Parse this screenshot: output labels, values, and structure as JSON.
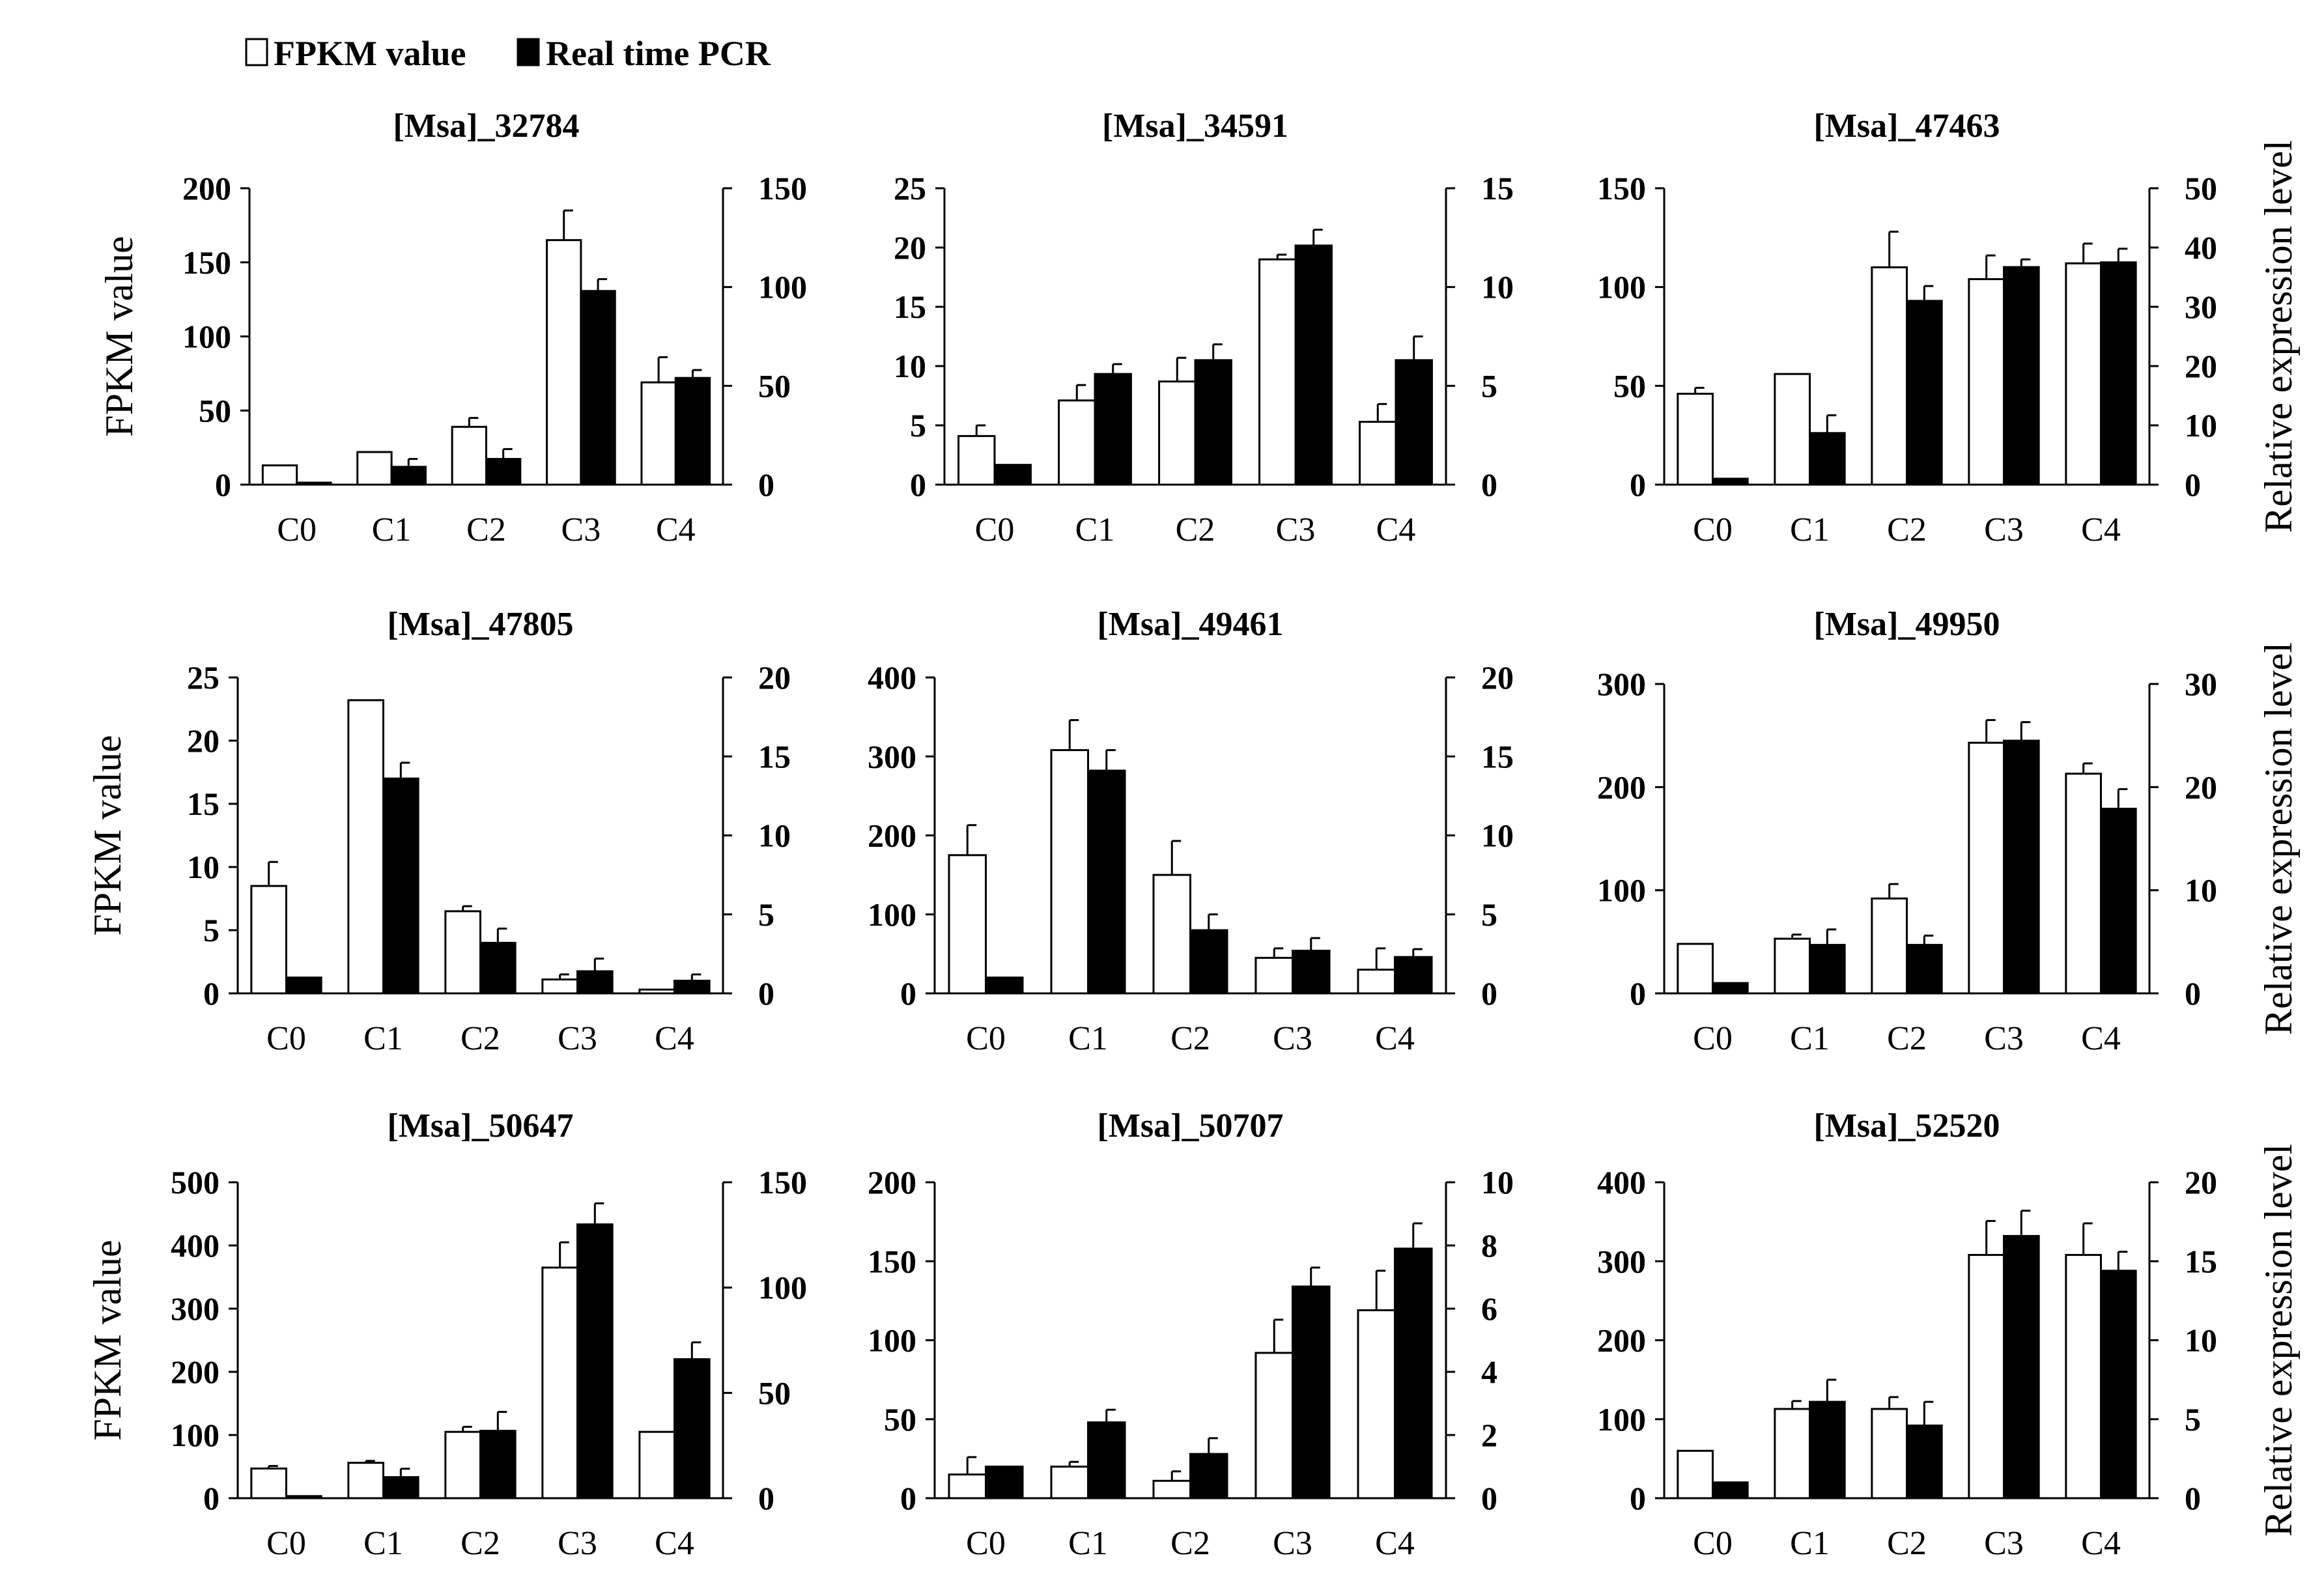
{
  "legend": {
    "fpkm_label": "FPKM value",
    "pcr_label": "Real time PCR"
  },
  "chart_data": [
    {
      "type": "bar",
      "title": "[Msa]_32784",
      "categories": [
        "C0",
        "C1",
        "C2",
        "C3",
        "C4"
      ],
      "ylabel_left": "FPKM value",
      "ylabel_right": "",
      "ylim_left": [
        0,
        200
      ],
      "yticks_left": [
        0,
        50,
        100,
        150,
        200
      ],
      "ylim_right": [
        0,
        150
      ],
      "yticks_right": [
        0,
        50,
        100,
        150
      ],
      "series": [
        {
          "name": "FPKM value",
          "axis": "left",
          "values": [
            13,
            22,
            39,
            165,
            69
          ],
          "errors": [
            0,
            0,
            6,
            20,
            17
          ]
        },
        {
          "name": "Real time PCR",
          "axis": "right",
          "values": [
            1,
            9,
            13,
            98,
            54
          ],
          "errors": [
            0,
            4,
            5,
            6,
            4
          ]
        }
      ]
    },
    {
      "type": "bar",
      "title": "[Msa]_34591",
      "categories": [
        "C0",
        "C1",
        "C2",
        "C3",
        "C4"
      ],
      "ylabel_left": "",
      "ylabel_right": "",
      "ylim_left": [
        0,
        25
      ],
      "yticks_left": [
        0,
        5,
        10,
        15,
        20,
        25
      ],
      "ylim_right": [
        0,
        15
      ],
      "yticks_right": [
        0,
        5,
        10,
        15
      ],
      "series": [
        {
          "name": "FPKM value",
          "axis": "left",
          "values": [
            4.1,
            7.1,
            8.7,
            19,
            5.3
          ],
          "errors": [
            0.9,
            1.3,
            2,
            0.4,
            1.5
          ]
        },
        {
          "name": "Real time PCR",
          "axis": "right",
          "values": [
            1,
            5.6,
            6.3,
            12.1,
            6.3
          ],
          "errors": [
            0,
            0.5,
            0.8,
            0.8,
            1.2
          ]
        }
      ]
    },
    {
      "type": "bar",
      "title": "[Msa]_47463",
      "categories": [
        "C0",
        "C1",
        "C2",
        "C3",
        "C4"
      ],
      "ylabel_left": "",
      "ylabel_right": "Relative expression level",
      "ylim_left": [
        0,
        150
      ],
      "yticks_left": [
        0,
        50,
        100,
        150
      ],
      "ylim_right": [
        0,
        50
      ],
      "yticks_right": [
        0,
        10,
        20,
        30,
        40,
        50
      ],
      "series": [
        {
          "name": "FPKM value",
          "axis": "left",
          "values": [
            46,
            56,
            110,
            104,
            112
          ],
          "errors": [
            3,
            0,
            18,
            12,
            10
          ]
        },
        {
          "name": "Real time PCR",
          "axis": "right",
          "values": [
            1,
            8.7,
            31,
            36.7,
            37.5
          ],
          "errors": [
            0,
            3,
            2.5,
            1.3,
            2.3
          ]
        }
      ]
    },
    {
      "type": "bar",
      "title": "[Msa]_47805",
      "categories": [
        "C0",
        "C1",
        "C2",
        "C3",
        "C4"
      ],
      "ylabel_left": "FPKM value",
      "ylabel_right": "",
      "ylim_left": [
        0,
        25
      ],
      "yticks_left": [
        0,
        5,
        10,
        15,
        20,
        25
      ],
      "ylim_right": [
        0,
        20
      ],
      "yticks_right": [
        0,
        5,
        10,
        15,
        20
      ],
      "series": [
        {
          "name": "FPKM value",
          "axis": "left",
          "values": [
            8.5,
            23.2,
            6.5,
            1.1,
            0.3
          ],
          "errors": [
            1.9,
            0,
            0.4,
            0.4,
            0
          ]
        },
        {
          "name": "Real time PCR",
          "axis": "right",
          "values": [
            1,
            13.6,
            3.2,
            1.4,
            0.8
          ],
          "errors": [
            0,
            1,
            0.9,
            0.8,
            0.4
          ]
        }
      ]
    },
    {
      "type": "bar",
      "title": "[Msa]_49461",
      "categories": [
        "C0",
        "C1",
        "C2",
        "C3",
        "C4"
      ],
      "ylabel_left": "",
      "ylabel_right": "",
      "ylim_left": [
        0,
        400
      ],
      "yticks_left": [
        0,
        100,
        200,
        300,
        400
      ],
      "ylim_right": [
        0,
        20
      ],
      "yticks_right": [
        0,
        5,
        10,
        15,
        20
      ],
      "series": [
        {
          "name": "FPKM value",
          "axis": "left",
          "values": [
            175,
            308,
            150,
            45,
            30
          ],
          "errors": [
            38,
            38,
            43,
            12,
            27
          ]
        },
        {
          "name": "Real time PCR",
          "axis": "right",
          "values": [
            1,
            14.1,
            4,
            2.7,
            2.3
          ],
          "errors": [
            0,
            1.3,
            1,
            0.8,
            0.5
          ]
        }
      ]
    },
    {
      "type": "bar",
      "title": "[Msa]_49950",
      "categories": [
        "C0",
        "C1",
        "C2",
        "C3",
        "C4"
      ],
      "ylabel_left": "",
      "ylabel_right": "Relative expression level",
      "ylim_left": [
        0,
        300
      ],
      "yticks_left": [
        0,
        100,
        200,
        300
      ],
      "ylim_right": [
        0,
        30
      ],
      "yticks_right": [
        0,
        10,
        20,
        30
      ],
      "series": [
        {
          "name": "FPKM value",
          "axis": "left",
          "values": [
            48,
            53,
            92,
            243,
            213
          ],
          "errors": [
            0,
            4,
            14,
            22,
            10
          ]
        },
        {
          "name": "Real time PCR",
          "axis": "right",
          "values": [
            1,
            4.7,
            4.7,
            24.5,
            17.9
          ],
          "errors": [
            0,
            1.5,
            0.9,
            1.8,
            1.9
          ]
        }
      ]
    },
    {
      "type": "bar",
      "title": "[Msa]_50647",
      "categories": [
        "C0",
        "C1",
        "C2",
        "C3",
        "C4"
      ],
      "ylabel_left": "FPKM value",
      "ylabel_right": "",
      "ylim_left": [
        0,
        500
      ],
      "yticks_left": [
        0,
        100,
        200,
        300,
        400,
        500
      ],
      "ylim_right": [
        0,
        150
      ],
      "yticks_right": [
        0,
        50,
        100,
        150
      ],
      "series": [
        {
          "name": "FPKM value",
          "axis": "left",
          "values": [
            47,
            56,
            105,
            365,
            105
          ],
          "errors": [
            4,
            3,
            8,
            40,
            0
          ]
        },
        {
          "name": "Real time PCR",
          "axis": "right",
          "values": [
            1,
            10,
            32,
            130,
            66
          ],
          "errors": [
            0,
            4,
            9,
            10,
            8
          ]
        }
      ]
    },
    {
      "type": "bar",
      "title": "[Msa]_50707",
      "categories": [
        "C0",
        "C1",
        "C2",
        "C3",
        "C4"
      ],
      "ylabel_left": "",
      "ylabel_right": "",
      "ylim_left": [
        0,
        200
      ],
      "yticks_left": [
        0,
        50,
        100,
        150,
        200
      ],
      "ylim_right": [
        0,
        10
      ],
      "yticks_right": [
        0,
        2,
        4,
        6,
        8,
        10
      ],
      "series": [
        {
          "name": "FPKM value",
          "axis": "left",
          "values": [
            15,
            20,
            11,
            92,
            119
          ],
          "errors": [
            11,
            3,
            6,
            21,
            25
          ]
        },
        {
          "name": "Real time PCR",
          "axis": "right",
          "values": [
            1,
            2.4,
            1.4,
            6.7,
            7.9
          ],
          "errors": [
            0,
            0.4,
            0.5,
            0.6,
            0.8
          ]
        }
      ]
    },
    {
      "type": "bar",
      "title": "[Msa]_52520",
      "categories": [
        "C0",
        "C1",
        "C2",
        "C3",
        "C4"
      ],
      "ylabel_left": "",
      "ylabel_right": "Relative expression level",
      "ylim_left": [
        0,
        400
      ],
      "yticks_left": [
        0,
        100,
        200,
        300,
        400
      ],
      "ylim_right": [
        0,
        20
      ],
      "yticks_right": [
        0,
        5,
        10,
        15,
        20
      ],
      "series": [
        {
          "name": "FPKM value",
          "axis": "left",
          "values": [
            60,
            113,
            113,
            308,
            308
          ],
          "errors": [
            0,
            10,
            15,
            43,
            40
          ]
        },
        {
          "name": "Real time PCR",
          "axis": "right",
          "values": [
            1,
            6.1,
            4.6,
            16.6,
            14.4
          ],
          "errors": [
            0,
            1.4,
            1.5,
            1.6,
            1.2
          ]
        }
      ]
    }
  ]
}
